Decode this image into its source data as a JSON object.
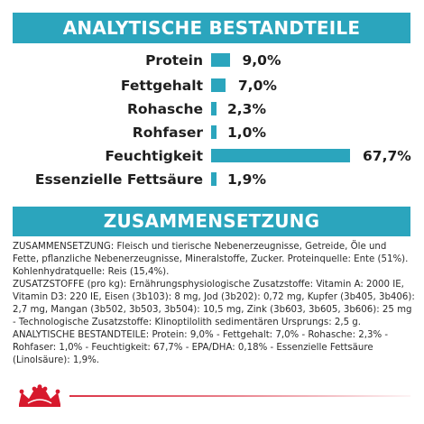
{
  "analytics": {
    "title": "ANALYTISCHE BESTANDTEILE",
    "rows": [
      {
        "label": "Protein",
        "value": "9,0%",
        "percent": 9.0
      },
      {
        "label": "Fettgehalt",
        "value": "7,0%",
        "percent": 7.0
      },
      {
        "label": "Rohasche",
        "value": "2,3%",
        "percent": 2.3
      },
      {
        "label": "Rohfaser",
        "value": "1,0%",
        "percent": 1.0
      },
      {
        "label": "Feuchtigkeit",
        "value": "67,7%",
        "percent": 67.7
      },
      {
        "label": "Essenzielle Fettsäure",
        "value": "1,9%",
        "percent": 1.9
      }
    ]
  },
  "composition": {
    "title": "ZUSAMMENSETZUNG",
    "paragraphs": [
      "ZUSAMMENSETZUNG: Fleisch und tierische Nebenerzeugnisse, Getreide, Öle und Fette, pflanzliche Nebenerzeugnisse, Mineralstoffe, Zucker. Proteinquelle: Ente (51%). Kohlenhydratquelle: Reis (15,4%).",
      "ZUSATZSTOFFE (pro kg): Ernährungsphysiologische Zusatzstoffe: Vitamin A: 2000 IE, Vitamin D3: 220 IE, Eisen (3b103): 8 mg, Jod (3b202): 0,72 mg, Kupfer (3b405, 3b406): 2,7 mg, Mangan (3b502, 3b503, 3b504): 10,5 mg, Zink (3b603, 3b605, 3b606): 25 mg - Technologische Zusatzstoffe: Klinoptilolith sedimentären Ursprungs: 2,5 g.",
      "ANALYTISCHE BESTANDTEILE: Protein: 9,0% - Fettgehalt: 7,0% - Rohasche: 2,3% - Rohfaser: 1,0% - Feuchtigkeit: 67,7% - EPA/DHA: 0,18% - Essenzielle Fettsäure (Linolsäure): 1,9%."
    ]
  },
  "colors": {
    "accent": "#2ba5bd",
    "brand_red": "#d7192d"
  },
  "logo": {
    "icon": "royal-canin-crown-icon"
  }
}
